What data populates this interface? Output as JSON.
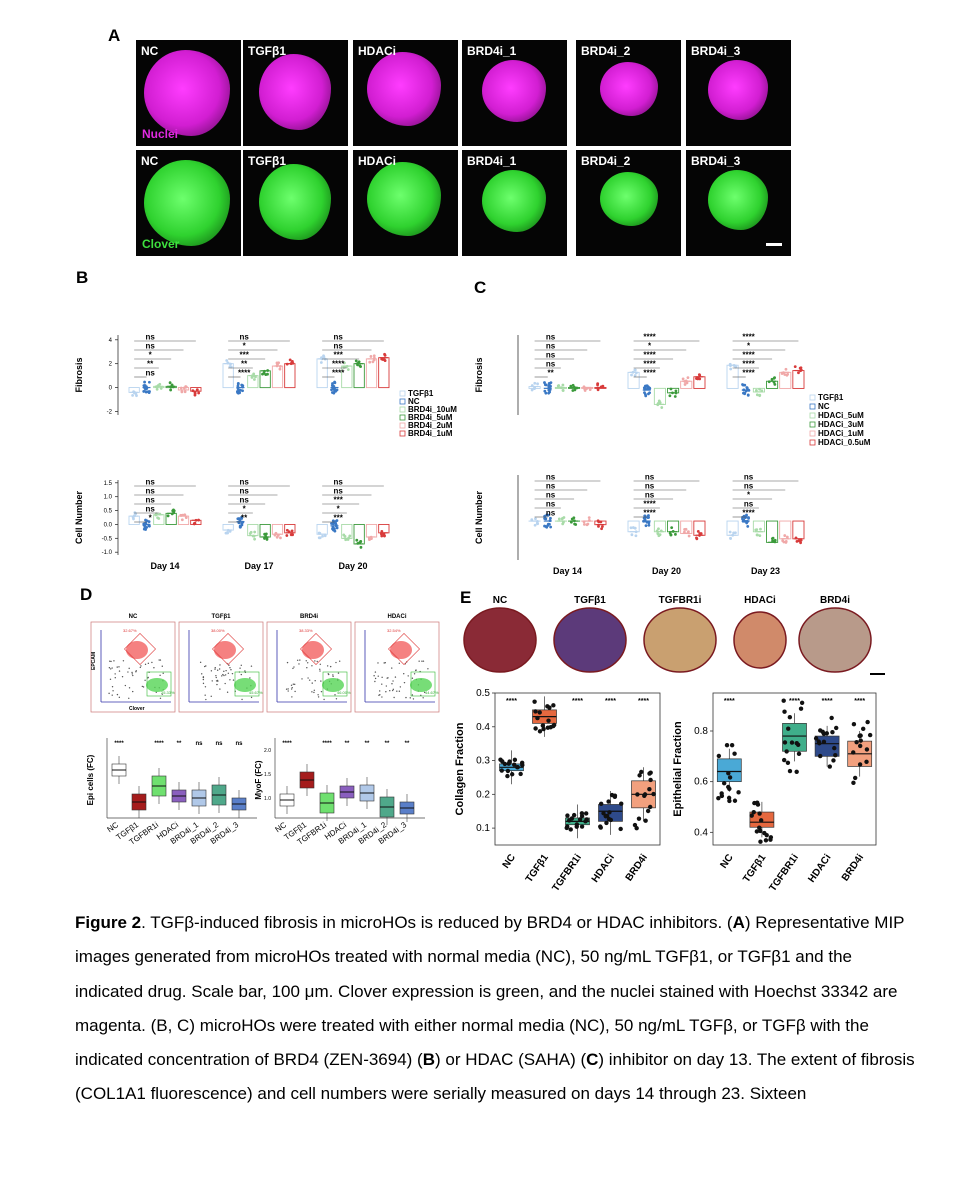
{
  "panelA": {
    "label": "A",
    "top_row": [
      "NC",
      "TGFβ1",
      "HDACi",
      "BRD4i_1",
      "BRD4i_2",
      "BRD4i_3"
    ],
    "bottom_row": [
      "NC",
      "TGFβ1",
      "HDACi",
      "BRD4i_1",
      "BRD4i_2",
      "BRD4i_3"
    ],
    "top_channel": "Nuclei",
    "bottom_channel": "Clover",
    "colors": {
      "nuclei": "#e02ae0",
      "clover": "#3ee03e"
    }
  },
  "panelB": {
    "label": "B",
    "ylabel_top": "Fibrosis",
    "ylabel_bottom": "Cell Number",
    "days": [
      "Day 14",
      "Day 17",
      "Day 20"
    ],
    "legend": [
      "TGFβ1",
      "NC",
      "BRD4i_10uM",
      "BRD4i_5uM",
      "BRD4i_2uM",
      "BRD4i_1uM"
    ],
    "top_yticks": [
      "4",
      "2",
      "0",
      "-2"
    ],
    "bottom_yticks": [
      "1.5",
      "1.0",
      "0.5",
      "0.0",
      "-0.5",
      "-1.0"
    ],
    "top_sig": [
      [
        "ns",
        "ns",
        "*",
        "**",
        "ns"
      ],
      [
        "ns",
        "*",
        "***",
        "**",
        "****"
      ],
      [
        "ns",
        "ns",
        "***",
        "****",
        "****"
      ]
    ],
    "bottom_sig": [
      [
        "ns",
        "ns",
        "ns",
        "ns",
        "*"
      ],
      [
        "ns",
        "ns",
        "ns",
        "*",
        "**"
      ],
      [
        "ns",
        "ns",
        "***",
        "*",
        "***"
      ]
    ]
  },
  "panelC": {
    "label": "C",
    "ylabel_top": "Fibrosis",
    "ylabel_bottom": "Cell Number",
    "days": [
      "Day 14",
      "Day 20",
      "Day 23"
    ],
    "legend": [
      "TGFβ1",
      "NC",
      "HDACi_5uM",
      "HDACi_3uM",
      "HDACi_1uM",
      "HDACi_0.5uM"
    ],
    "top_sig": [
      [
        "ns",
        "ns",
        "ns",
        "ns",
        "**"
      ],
      [
        "****",
        "*",
        "****",
        "****",
        "****"
      ],
      [
        "****",
        "*",
        "****",
        "****",
        "****"
      ]
    ],
    "bottom_sig": [
      [
        "ns",
        "ns",
        "ns",
        "ns",
        "ns"
      ],
      [
        "ns",
        "ns",
        "ns",
        "****",
        "****"
      ],
      [
        "ns",
        "ns",
        "*",
        "ns",
        "****"
      ]
    ]
  },
  "panelD": {
    "label": "D",
    "flow_titles": [
      "NC",
      "TGFβ1",
      "BRD4i",
      "HDACi"
    ],
    "flow_axis_y": "EPCAM",
    "flow_axis_x": "Clover",
    "flow_red_pct": [
      "32.67%",
      "38.00%",
      "38.33%",
      "32.54%"
    ],
    "flow_green_pct": [
      "25.33%",
      "45.67%",
      "46.00%",
      "44.67%"
    ],
    "ylabel_left": "Epi cells (FC)",
    "ylabel_right": "MyoF (FC)",
    "categories": [
      "NC",
      "TGFβ1",
      "TGFBR1i",
      "HDACi",
      "BRD4i_1",
      "BRD4i_2",
      "BRD4i_3"
    ],
    "sig_left": [
      "****",
      "",
      "****",
      "**",
      "ns",
      "ns",
      "ns"
    ],
    "sig_right": [
      "****",
      "",
      "****",
      "**",
      "**",
      "**",
      "**"
    ],
    "right_yticks": [
      "2.0",
      "1.5",
      "1.0"
    ],
    "colors": [
      "#ffffff",
      "#a51c1c",
      "#6fe06f",
      "#8a5fbf",
      "#b0c8e8",
      "#4fa88a",
      "#5a7fc9"
    ]
  },
  "panelE": {
    "label": "E",
    "image_titles": [
      "NC",
      "TGFβ1",
      "TGFBR1i",
      "HDACi",
      "BRD4i"
    ],
    "left_ylabel": "Collagen Fraction",
    "right_ylabel": "Epithelial Fraction",
    "categories": [
      "NC",
      "TGFβ1",
      "TGFBR1i",
      "HDACi",
      "BRD4i"
    ],
    "sig_left": [
      "****",
      "",
      "****",
      "****",
      "****"
    ],
    "sig_right": [
      "****",
      "",
      "****",
      "****",
      "****"
    ],
    "left_yticks": [
      "0.5",
      "0.4",
      "0.3",
      "0.2",
      "0.1"
    ],
    "right_yticks": [
      "0.8",
      "0.6",
      "0.4"
    ],
    "colors": [
      "#4aa9d6",
      "#e5683f",
      "#3fae8a",
      "#2e4a8a",
      "#f2a07e"
    ]
  },
  "chart_data": [
    {
      "type": "box",
      "title": "",
      "xlabel": "",
      "ylabel": "Collagen Fraction",
      "categories": [
        "NC",
        "TGFβ1",
        "TGFBR1i",
        "HDACi",
        "BRD4i"
      ],
      "median": [
        0.28,
        0.43,
        0.12,
        0.15,
        0.2
      ],
      "q1": [
        0.27,
        0.41,
        0.11,
        0.12,
        0.16
      ],
      "q3": [
        0.29,
        0.45,
        0.13,
        0.17,
        0.24
      ],
      "ylim": [
        0.05,
        0.5
      ]
    },
    {
      "type": "box",
      "title": "",
      "xlabel": "",
      "ylabel": "Epithelial Fraction",
      "categories": [
        "NC",
        "TGFβ1",
        "TGFBR1i",
        "HDACi",
        "BRD4i"
      ],
      "median": [
        0.64,
        0.44,
        0.78,
        0.75,
        0.71
      ],
      "q1": [
        0.6,
        0.42,
        0.72,
        0.7,
        0.66
      ],
      "q3": [
        0.69,
        0.48,
        0.83,
        0.78,
        0.76
      ],
      "ylim": [
        0.35,
        0.95
      ]
    }
  ],
  "caption": {
    "fig": "Figure 2",
    "t1": ". TGFβ-induced fibrosis in microHOs is reduced by BRD4 or HDAC inhibitors. (",
    "A": "A",
    "t2": ") Representative MIP images generated from microHOs treated with normal media (NC), 50 ng/mL TGFβ1, or TGFβ1 and the indicated drug. Scale bar, 100 μm. Clover expression is green, and the nuclei stained with Hoechst 33342 are magenta. (B, C) microHOs were treated with either normal media (NC), 50 ng/mL TGFβ, or TGFβ with the indicated concentration of BRD4 (ZEN-3694) (",
    "B": "B",
    "t3": ") or HDAC (SAHA) (",
    "C": "C",
    "t4": ") inhibitor on day 13. The extent of fibrosis (COL1A1 fluorescence) and cell numbers were serially measured on days 14 through 23. Sixteen"
  }
}
